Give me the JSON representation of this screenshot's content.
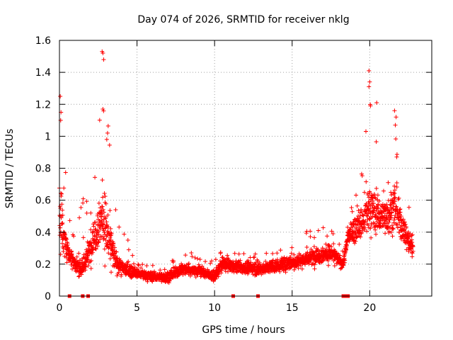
{
  "chart_data": {
    "type": "scatter",
    "title": "Day 074 of 2026, SRMTID for receiver nklg",
    "xlabel": "GPS time / hours",
    "ylabel": "SRMTID / TECUs",
    "xlim": [
      0,
      24
    ],
    "ylim": [
      0,
      1.6
    ],
    "x_ticks": [
      0,
      5,
      10,
      15,
      20
    ],
    "x_tick_labels": [
      "0",
      "5",
      "10",
      "15",
      "20"
    ],
    "y_ticks": [
      0,
      0.2,
      0.4,
      0.6,
      0.8,
      1.0,
      1.2,
      1.4,
      1.6
    ],
    "y_tick_labels": [
      "0",
      "0.2",
      "0.4",
      "0.6",
      "0.8",
      "1",
      "1.2",
      "1.4",
      "1.6"
    ],
    "grid": true,
    "marker": "+",
    "color": "#ff0000",
    "zero_markers_x": [
      0.65,
      1.5,
      1.85,
      11.2,
      12.8,
      18.3,
      18.5,
      18.6
    ],
    "envelope": [
      {
        "t": 0.0,
        "center": 0.55,
        "spread": 0.35,
        "max": 1.25
      },
      {
        "t": 0.5,
        "center": 0.28,
        "spread": 0.12,
        "max": 0.85
      },
      {
        "t": 1.0,
        "center": 0.2,
        "spread": 0.08,
        "max": 0.45
      },
      {
        "t": 1.5,
        "center": 0.18,
        "spread": 0.12,
        "max": 0.62
      },
      {
        "t": 2.0,
        "center": 0.3,
        "spread": 0.15,
        "max": 0.65
      },
      {
        "t": 2.5,
        "center": 0.45,
        "spread": 0.25,
        "max": 0.95
      },
      {
        "t": 2.8,
        "center": 0.5,
        "spread": 0.35,
        "max": 1.53
      },
      {
        "t": 3.2,
        "center": 0.35,
        "spread": 0.25,
        "max": 1.02
      },
      {
        "t": 3.6,
        "center": 0.22,
        "spread": 0.12,
        "max": 0.6
      },
      {
        "t": 4.0,
        "center": 0.18,
        "spread": 0.08,
        "max": 0.45
      },
      {
        "t": 5.0,
        "center": 0.14,
        "spread": 0.05,
        "max": 0.22
      },
      {
        "t": 6.0,
        "center": 0.12,
        "spread": 0.05,
        "max": 0.2
      },
      {
        "t": 7.0,
        "center": 0.12,
        "spread": 0.05,
        "max": 0.22
      },
      {
        "t": 8.0,
        "center": 0.17,
        "spread": 0.06,
        "max": 0.3
      },
      {
        "t": 9.0,
        "center": 0.16,
        "spread": 0.06,
        "max": 0.26
      },
      {
        "t": 10.0,
        "center": 0.12,
        "spread": 0.05,
        "max": 0.25
      },
      {
        "t": 10.5,
        "center": 0.2,
        "spread": 0.07,
        "max": 0.3
      },
      {
        "t": 11.5,
        "center": 0.18,
        "spread": 0.06,
        "max": 0.28
      },
      {
        "t": 13.0,
        "center": 0.17,
        "spread": 0.06,
        "max": 0.26
      },
      {
        "t": 14.5,
        "center": 0.2,
        "spread": 0.07,
        "max": 0.35
      },
      {
        "t": 15.5,
        "center": 0.22,
        "spread": 0.07,
        "max": 0.38
      },
      {
        "t": 16.5,
        "center": 0.25,
        "spread": 0.09,
        "max": 0.45
      },
      {
        "t": 17.5,
        "center": 0.27,
        "spread": 0.09,
        "max": 0.42
      },
      {
        "t": 18.3,
        "center": 0.2,
        "spread": 0.05,
        "max": 0.3
      },
      {
        "t": 18.6,
        "center": 0.38,
        "spread": 0.08,
        "max": 0.45
      },
      {
        "t": 19.5,
        "center": 0.45,
        "spread": 0.18,
        "max": 0.88
      },
      {
        "t": 20.0,
        "center": 0.55,
        "spread": 0.25,
        "max": 1.41
      },
      {
        "t": 20.5,
        "center": 0.5,
        "spread": 0.2,
        "max": 0.95
      },
      {
        "t": 21.0,
        "center": 0.5,
        "spread": 0.18,
        "max": 0.8
      },
      {
        "t": 21.6,
        "center": 0.55,
        "spread": 0.22,
        "max": 1.16
      },
      {
        "t": 22.2,
        "center": 0.4,
        "spread": 0.15,
        "max": 0.62
      },
      {
        "t": 22.8,
        "center": 0.3,
        "spread": 0.12,
        "max": 0.67
      }
    ],
    "peak_points": [
      {
        "x": 0.05,
        "y": 1.25
      },
      {
        "x": 0.1,
        "y": 1.15
      },
      {
        "x": 0.08,
        "y": 1.1
      },
      {
        "x": 2.75,
        "y": 1.53
      },
      {
        "x": 2.8,
        "y": 1.52
      },
      {
        "x": 2.85,
        "y": 1.48
      },
      {
        "x": 2.8,
        "y": 1.17
      },
      {
        "x": 3.1,
        "y": 1.02
      },
      {
        "x": 3.05,
        "y": 0.98
      },
      {
        "x": 19.95,
        "y": 1.41
      },
      {
        "x": 20.0,
        "y": 1.34
      },
      {
        "x": 19.95,
        "y": 1.31
      },
      {
        "x": 20.05,
        "y": 1.19
      },
      {
        "x": 20.45,
        "y": 1.21
      },
      {
        "x": 21.6,
        "y": 1.16
      },
      {
        "x": 21.7,
        "y": 1.12
      },
      {
        "x": 21.65,
        "y": 1.07
      }
    ],
    "n_points_per_hour": 120
  }
}
